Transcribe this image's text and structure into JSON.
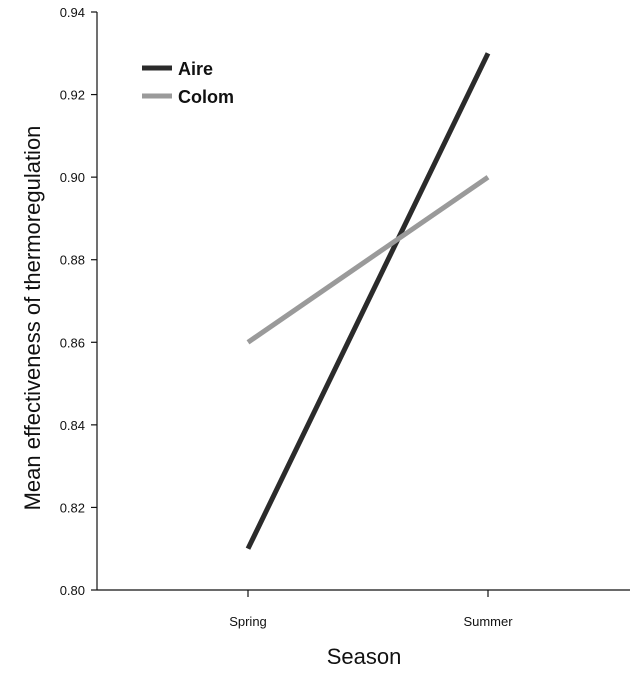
{
  "chart_data": {
    "type": "line",
    "title": "",
    "xlabel": "Season",
    "ylabel": "Mean effectiveness of thermoregulation",
    "categories": [
      "Spring",
      "Summer"
    ],
    "ylim": [
      0.8,
      0.94
    ],
    "yticks": [
      "0.80",
      "0.82",
      "0.84",
      "0.86",
      "0.88",
      "0.90",
      "0.92",
      "0.94"
    ],
    "grid": false,
    "legend_position": "top-left",
    "series": [
      {
        "name": "Aire",
        "values": [
          0.81,
          0.93
        ],
        "color": "#2b2b2b"
      },
      {
        "name": "Colom",
        "values": [
          0.86,
          0.9
        ],
        "color": "#9a9a9a"
      }
    ]
  }
}
